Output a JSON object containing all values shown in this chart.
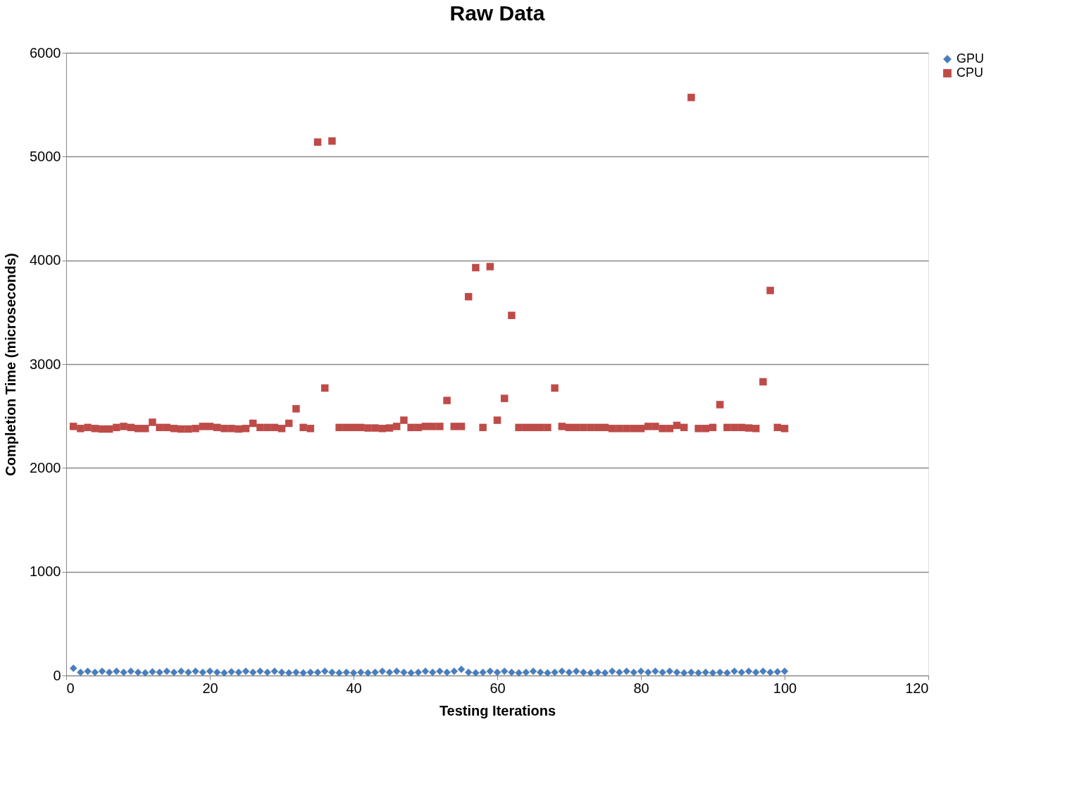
{
  "chart_data": {
    "type": "scatter",
    "title": "Raw Data",
    "xlabel": "Testing Iterations",
    "ylabel": "Completion Time (microseconds)",
    "xlim": [
      0,
      120
    ],
    "xticks": [
      0,
      20,
      40,
      60,
      80,
      100,
      120
    ],
    "ylim": [
      0,
      6000
    ],
    "yticks": [
      0,
      1000,
      2000,
      3000,
      4000,
      5000,
      6000
    ],
    "grid": "y",
    "legend": "right",
    "x": [
      1,
      2,
      3,
      4,
      5,
      6,
      7,
      8,
      9,
      10,
      11,
      12,
      13,
      14,
      15,
      16,
      17,
      18,
      19,
      20,
      21,
      22,
      23,
      24,
      25,
      26,
      27,
      28,
      29,
      30,
      31,
      32,
      33,
      34,
      35,
      36,
      37,
      38,
      39,
      40,
      41,
      42,
      43,
      44,
      45,
      46,
      47,
      48,
      49,
      50,
      51,
      52,
      53,
      54,
      55,
      56,
      57,
      58,
      59,
      60,
      61,
      62,
      63,
      64,
      65,
      66,
      67,
      68,
      69,
      70,
      71,
      72,
      73,
      74,
      75,
      76,
      77,
      78,
      79,
      80,
      81,
      82,
      83,
      84,
      85,
      86,
      87,
      88,
      89,
      90,
      91,
      92,
      93,
      94,
      95,
      96,
      97,
      98,
      99,
      100
    ],
    "series": [
      {
        "name": "GPU",
        "color": "#4a7ebb",
        "marker": "diamond",
        "values": [
          70,
          30,
          40,
          30,
          40,
          30,
          40,
          30,
          40,
          30,
          25,
          35,
          30,
          40,
          30,
          40,
          30,
          40,
          30,
          40,
          30,
          25,
          35,
          30,
          40,
          30,
          40,
          30,
          40,
          30,
          25,
          30,
          25,
          30,
          30,
          40,
          30,
          25,
          30,
          25,
          30,
          25,
          30,
          40,
          30,
          40,
          30,
          25,
          30,
          40,
          30,
          40,
          30,
          40,
          60,
          30,
          25,
          30,
          40,
          30,
          40,
          30,
          25,
          30,
          40,
          30,
          25,
          30,
          40,
          30,
          40,
          30,
          25,
          30,
          25,
          40,
          30,
          40,
          30,
          40,
          30,
          40,
          30,
          40,
          30,
          25,
          30,
          25,
          30,
          25,
          30,
          25,
          40,
          30,
          40,
          30,
          40,
          30,
          35,
          40
        ]
      },
      {
        "name": "CPU",
        "color": "#be4b48",
        "marker": "square",
        "values": [
          2400,
          2380,
          2390,
          2380,
          2375,
          2375,
          2390,
          2400,
          2390,
          2380,
          2380,
          2440,
          2390,
          2390,
          2380,
          2375,
          2375,
          2380,
          2400,
          2400,
          2390,
          2380,
          2380,
          2375,
          2380,
          2430,
          2390,
          2390,
          2390,
          2380,
          2430,
          2570,
          2390,
          2380,
          5140,
          2770,
          5150,
          2390,
          2390,
          2390,
          2390,
          2385,
          2385,
          2380,
          2385,
          2400,
          2460,
          2390,
          2390,
          2400,
          2400,
          2400,
          2650,
          2400,
          2400,
          3650,
          3930,
          2390,
          3940,
          2460,
          2670,
          3470,
          2390,
          2390,
          2390,
          2390,
          2390,
          2770,
          2400,
          2390,
          2390,
          2390,
          2390,
          2390,
          2390,
          2380,
          2380,
          2380,
          2380,
          2380,
          2400,
          2400,
          2380,
          2380,
          2410,
          2390,
          5570,
          2380,
          2380,
          2390,
          2610,
          2390,
          2390,
          2390,
          2385,
          2380,
          2830,
          3710,
          2390,
          2380
        ]
      }
    ]
  }
}
